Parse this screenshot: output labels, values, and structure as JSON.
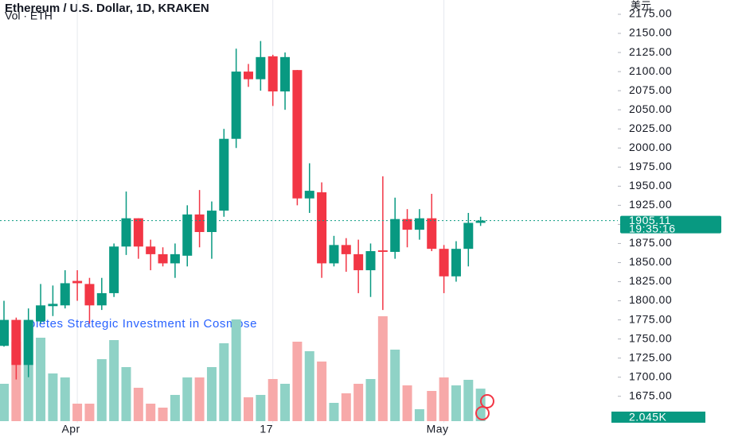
{
  "chart_data": {
    "type": "candlestick",
    "title": "Ethereum / U.S. Dollar, 1D, KRAKEN",
    "subtitle": "Vol · ETH",
    "currency": "美元",
    "annotation": "oletes Strategic Investment in Cosmose",
    "categories": [
      null,
      null,
      null,
      null,
      null,
      null,
      "Apr",
      null,
      null,
      null,
      null,
      null,
      null,
      null,
      null,
      null,
      null,
      null,
      null,
      null,
      null,
      null,
      "17",
      null,
      null,
      null,
      null,
      null,
      null,
      null,
      null,
      null,
      null,
      null,
      null,
      null,
      "May",
      null,
      null,
      null
    ],
    "open": [
      1741,
      1775,
      1716,
      1773,
      1793,
      1794,
      1826,
      1822,
      1794,
      1810,
      1871,
      1908,
      1871,
      1861,
      1849,
      1859,
      1913,
      1890,
      1918,
      2012,
      2100,
      2090,
      2120,
      2074,
      2102,
      1934,
      1942,
      1849,
      1873,
      1861,
      1840,
      1866,
      1864,
      1907,
      1893,
      1908,
      1868,
      1832,
      1868,
      1902
    ],
    "high": [
      1800,
      1778,
      1790,
      1822,
      1820,
      1840,
      1840,
      1830,
      1830,
      1875,
      1943,
      1908,
      1880,
      1870,
      1875,
      1925,
      1945,
      1930,
      2025,
      2130,
      2110,
      2140,
      2122,
      2125,
      2102,
      1980,
      1955,
      1885,
      1882,
      1880,
      1875,
      1963,
      1935,
      1920,
      1920,
      1940,
      1873,
      1878,
      1915,
      1910
    ],
    "low": [
      1740,
      1697,
      1700,
      1770,
      1780,
      1790,
      1800,
      1770,
      1788,
      1805,
      1860,
      1855,
      1840,
      1845,
      1830,
      1845,
      1870,
      1855,
      1910,
      2000,
      2080,
      2075,
      2055,
      2050,
      1925,
      1915,
      1830,
      1845,
      1838,
      1810,
      1805,
      1788,
      1855,
      1870,
      1880,
      1865,
      1810,
      1825,
      1845,
      1898
    ],
    "close": [
      1775,
      1716,
      1775,
      1794,
      1796,
      1823,
      1823,
      1794,
      1810,
      1871,
      1908,
      1871,
      1861,
      1849,
      1861,
      1913,
      1890,
      1918,
      2012,
      2100,
      2090,
      2119,
      2074,
      2119,
      1934,
      1944,
      1849,
      1873,
      1861,
      1840,
      1865,
      1864,
      1907,
      1893,
      1908,
      1868,
      1832,
      1868,
      1902,
      1905
    ],
    "volume": [
      2.35,
      5,
      6.25,
      5.25,
      3,
      2.75,
      1.1,
      1.1,
      3.9,
      5.1,
      3.4,
      2.1,
      1.1,
      0.85,
      1.65,
      2.75,
      2.75,
      3.4,
      4.9,
      6.4,
      1.5,
      1.65,
      2.65,
      2.35,
      5,
      4.4,
      3.75,
      1.15,
      1.75,
      2.35,
      2.65,
      6.6,
      4.5,
      2.25,
      0.75,
      1.9,
      2.75,
      2.25,
      2.6,
      2.045
    ],
    "volume_label": "2.045K",
    "up_color": "#089981",
    "down_color": "#f23645",
    "up_volume_color": "#8fd2c6",
    "down_volume_color": "#f7a9a9",
    "last_price_label": "1905.11",
    "countdown": "19:35:16",
    "ylim": [
      1661.2,
      2193.7
    ],
    "yticks": [
      {
        "value": 1675,
        "label": "1675.00"
      },
      {
        "value": 1700,
        "label": "1700.00"
      },
      {
        "value": 1725,
        "label": "1725.00"
      },
      {
        "value": 1750,
        "label": "1750.00"
      },
      {
        "value": 1775,
        "label": "1775.00"
      },
      {
        "value": 1800,
        "label": "1800.00"
      },
      {
        "value": 1825,
        "label": "1825.00"
      },
      {
        "value": 1850,
        "label": "1850.00"
      },
      {
        "value": 1875,
        "label": "1875.00"
      },
      {
        "value": 1900,
        "label": "1900.00"
      },
      {
        "value": 1925,
        "label": "1925.00"
      },
      {
        "value": 1950,
        "label": "1950.00"
      },
      {
        "value": 1975,
        "label": "1975.00"
      },
      {
        "value": 2000,
        "label": "2000.00"
      },
      {
        "value": 2025,
        "label": "2025.00"
      },
      {
        "value": 2050,
        "label": "2050.00"
      },
      {
        "value": 2075,
        "label": "2075.00"
      },
      {
        "value": 2100,
        "label": "2100.00"
      },
      {
        "value": 2125,
        "label": "2125.00"
      },
      {
        "value": 2150,
        "label": "2150.00"
      },
      {
        "value": 2175,
        "label": "2175.00"
      }
    ]
  }
}
